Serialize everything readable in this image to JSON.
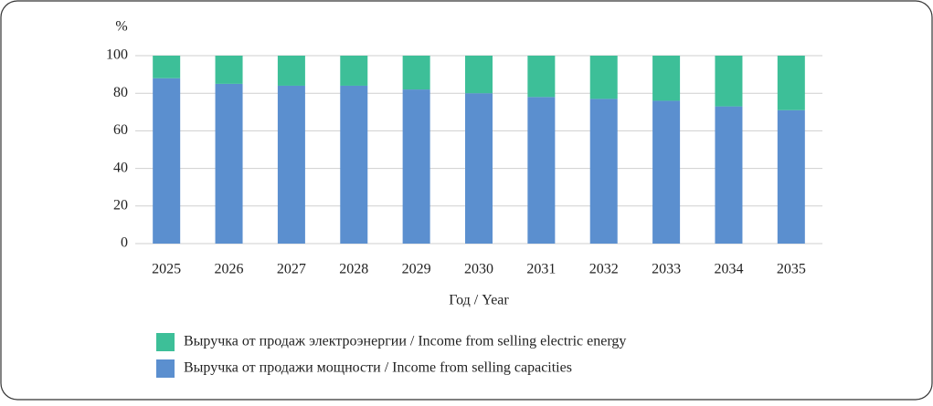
{
  "chart_data": {
    "type": "stacked-bar",
    "y_label": "%",
    "x_label": "Год / Year",
    "categories": [
      "2025",
      "2026",
      "2027",
      "2028",
      "2029",
      "2030",
      "2031",
      "2032",
      "2033",
      "2034",
      "2035"
    ],
    "series": [
      {
        "name": "Выручка от продажи мощности / Income from selling capacities",
        "color": "#5b8fcf",
        "values": [
          88,
          85,
          84,
          84,
          82,
          80,
          78,
          77,
          76,
          73,
          71
        ]
      },
      {
        "name": "Выручка от продаж электроэнергии / Income from selling electric energy",
        "color": "#3dbf98",
        "values": [
          12,
          15,
          16,
          16,
          18,
          20,
          22,
          23,
          24,
          27,
          29
        ]
      }
    ],
    "ylim": [
      0,
      100
    ],
    "yticks": [
      0,
      20,
      40,
      60,
      80,
      100
    ],
    "grid": true
  }
}
